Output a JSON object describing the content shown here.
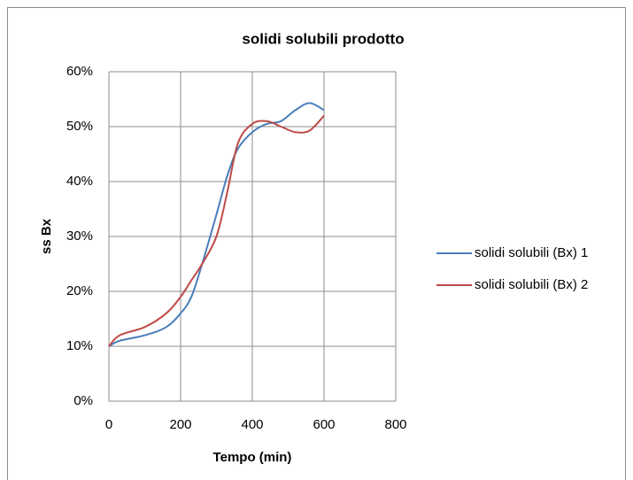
{
  "chart_data": {
    "type": "line",
    "title": "solidi solubili prodotto",
    "x_label": "Tempo (min)",
    "y_label": "ss Bx",
    "x": [
      0,
      30,
      100,
      160,
      200,
      230,
      260,
      300,
      330,
      360,
      400,
      440,
      480,
      520,
      560,
      600
    ],
    "series": [
      {
        "name": "solidi  solubili (Bx) 1",
        "color": "#4a7ebb",
        "values": [
          10,
          11,
          12,
          13.5,
          16,
          19,
          25,
          34,
          41,
          46,
          49,
          50.5,
          51,
          53,
          54.3,
          53
        ]
      },
      {
        "name": "solidi  solubili (Bx) 2",
        "color": "#be4b48",
        "values": [
          10,
          12,
          13.5,
          16,
          19,
          22,
          25,
          30,
          38,
          47,
          50.5,
          51,
          50,
          49,
          49.3,
          52
        ]
      }
    ],
    "xlim": [
      0,
      800
    ],
    "xticks": [
      0,
      200,
      400,
      600,
      800
    ],
    "ylim": [
      0,
      60
    ],
    "yticks": [
      {
        "value": 0,
        "label": "0%"
      },
      {
        "value": 10,
        "label": "10%"
      },
      {
        "value": 20,
        "label": "20%"
      },
      {
        "value": 30,
        "label": "30%"
      },
      {
        "value": 40,
        "label": "40%"
      },
      {
        "value": 50,
        "label": "50%"
      },
      {
        "value": 60,
        "label": "60%"
      }
    ],
    "grid": true,
    "legend": "right"
  }
}
